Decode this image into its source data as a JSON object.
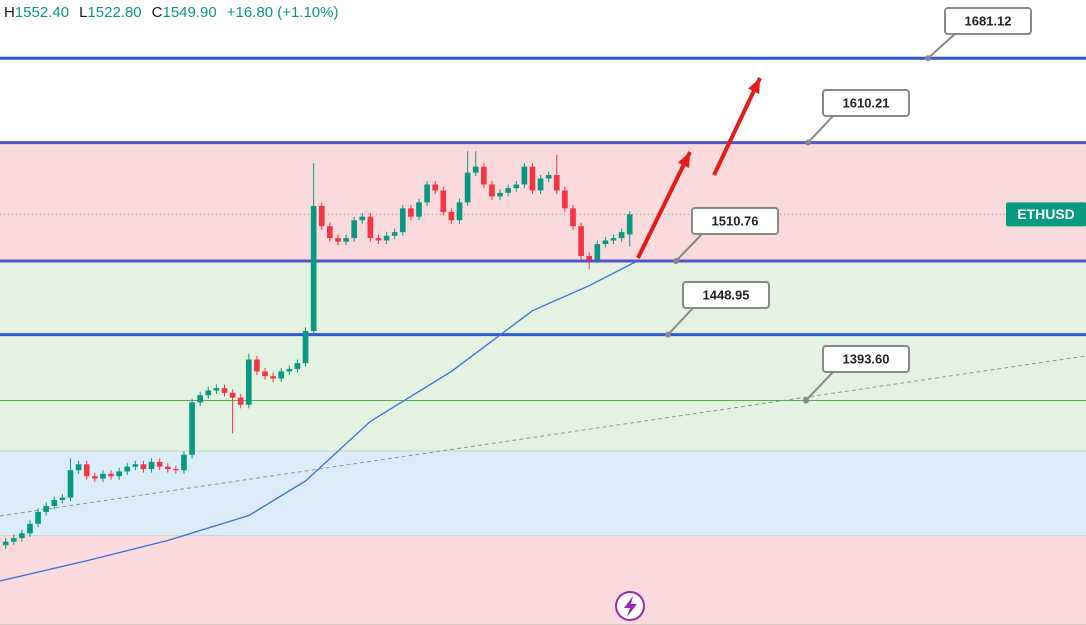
{
  "chart_data": {
    "type": "candlestick",
    "header": [
      {
        "key": "H",
        "text": "1552.40"
      },
      {
        "key": "L",
        "text": "1522.80"
      },
      {
        "key": "C",
        "text": "1549.90"
      }
    ],
    "change": "+16.80 (+1.10%)",
    "symbol": "ETHUSD",
    "ylim": [
      1205,
      1730
    ],
    "xlim": [
      -0.7,
      133.3
    ],
    "up_color": "#089981",
    "down_color": "#f23645",
    "open": [
      1272,
      1275,
      1278,
      1282,
      1290,
      1300,
      1305,
      1310,
      1312,
      1335,
      1340,
      1330,
      1328,
      1332,
      1330,
      1334,
      1338,
      1340,
      1336,
      1342,
      1338,
      1336,
      1335,
      1348,
      1392,
      1398,
      1402,
      1404,
      1400,
      1396,
      1390,
      1428,
      1418,
      1414,
      1412,
      1418,
      1420,
      1425,
      1452,
      1557,
      1540,
      1530,
      1527,
      1530,
      1545,
      1548,
      1530,
      1528,
      1532,
      1535,
      1555,
      1548,
      1560,
      1575,
      1570,
      1552,
      1545,
      1560,
      1585,
      1590,
      1575,
      1565,
      1568,
      1572,
      1575,
      1590,
      1570,
      1580,
      1583,
      1570,
      1555,
      1540,
      1515,
      1512,
      1525,
      1528,
      1530,
      1533.1
    ],
    "high": [
      1278,
      1281,
      1285,
      1293,
      1303,
      1308,
      1313,
      1315,
      1345,
      1343,
      1343,
      1333,
      1335,
      1335,
      1337,
      1341,
      1343,
      1343,
      1345,
      1345,
      1341,
      1339,
      1351,
      1395,
      1401,
      1405,
      1407,
      1407,
      1403,
      1399,
      1433,
      1431,
      1421,
      1417,
      1421,
      1423,
      1428,
      1455,
      1593,
      1560,
      1543,
      1533,
      1533,
      1548,
      1551,
      1551,
      1533,
      1535,
      1538,
      1558,
      1558,
      1563,
      1578,
      1578,
      1573,
      1555,
      1563,
      1603,
      1603,
      1593,
      1578,
      1571,
      1575,
      1578,
      1593,
      1593,
      1583,
      1586,
      1600,
      1573,
      1558,
      1543,
      1518,
      1528,
      1531,
      1533,
      1538,
      1552.4
    ],
    "low": [
      1269,
      1272,
      1275,
      1279,
      1287,
      1297,
      1302,
      1307,
      1309,
      1332,
      1327,
      1325,
      1325,
      1327,
      1327,
      1331,
      1335,
      1333,
      1333,
      1335,
      1333,
      1332,
      1332,
      1345,
      1389,
      1395,
      1399,
      1397,
      1366,
      1387,
      1387,
      1415,
      1411,
      1409,
      1409,
      1415,
      1417,
      1422,
      1449,
      1537,
      1527,
      1524,
      1524,
      1527,
      1542,
      1527,
      1525,
      1525,
      1529,
      1532,
      1545,
      1545,
      1557,
      1567,
      1549,
      1542,
      1542,
      1557,
      1582,
      1572,
      1562,
      1562,
      1565,
      1569,
      1572,
      1567,
      1567,
      1577,
      1567,
      1552,
      1537,
      1512,
      1504,
      1509,
      1522,
      1525,
      1527,
      1522.8
    ],
    "close": [
      1275,
      1278,
      1282,
      1290,
      1300,
      1305,
      1310,
      1312,
      1335,
      1340,
      1330,
      1328,
      1332,
      1330,
      1334,
      1338,
      1340,
      1336,
      1342,
      1338,
      1336,
      1335,
      1348,
      1392,
      1398,
      1402,
      1404,
      1400,
      1396,
      1390,
      1428,
      1418,
      1414,
      1412,
      1418,
      1420,
      1425,
      1452,
      1557,
      1540,
      1530,
      1527,
      1530,
      1545,
      1548,
      1530,
      1528,
      1532,
      1535,
      1555,
      1548,
      1560,
      1575,
      1570,
      1552,
      1545,
      1560,
      1585,
      1590,
      1575,
      1565,
      1568,
      1572,
      1575,
      1590,
      1570,
      1580,
      1583,
      1570,
      1555,
      1540,
      1515,
      1512,
      1525,
      1528,
      1530,
      1535,
      1549.9
    ],
    "moving_average": {
      "color": "#3a6fd8",
      "x": [
        -0.7,
        10,
        20,
        30,
        37,
        45,
        55,
        65,
        72,
        78
      ],
      "values": [
        1242,
        1259,
        1276,
        1297,
        1326,
        1376,
        1418,
        1469,
        1490,
        1511
      ]
    },
    "trendline": {
      "color": "#8a9a8a",
      "x": [
        -0.7,
        133.3
      ],
      "values": [
        1296.6,
        1431
      ]
    },
    "zones": [
      {
        "from": 1510.76,
        "to": 1610.21,
        "color": "#fadadd"
      },
      {
        "from": 1351,
        "to": 1510.76,
        "color": "#e3f2e1"
      },
      {
        "from": 1280,
        "to": 1351,
        "color": "#dcecf8"
      },
      {
        "from": 1205,
        "to": 1280,
        "color": "#fadadd"
      }
    ],
    "levels": [
      {
        "value": 1681.12,
        "label": "1681.12",
        "color": "#2f57d6"
      },
      {
        "value": 1610.21,
        "label": "1610.21",
        "color": "#5553c9"
      },
      {
        "value": 1510.76,
        "label": "1510.76",
        "color": "#5553c9"
      },
      {
        "value": 1448.95,
        "label": "1448.95",
        "color": "#2f57d6"
      },
      {
        "value": 1393.6,
        "label": "1393.60",
        "color": "#4caf50"
      }
    ]
  }
}
